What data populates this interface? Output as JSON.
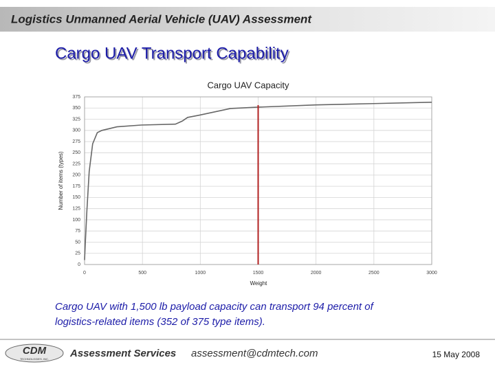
{
  "header": {
    "title": "Logistics Unmanned Aerial Vehicle (UAV) Assessment"
  },
  "slide": {
    "title": "Cargo UAV Transport Capability",
    "caption": [
      "Cargo UAV with 1,500 lb payload capacity can transport 94 percent of",
      "logistics-related items  (352 of 375 type items)."
    ]
  },
  "chart_data": {
    "type": "line",
    "title": "Cargo UAV Capacity",
    "x_label": "Weight",
    "y_label": "Number of items (types)",
    "x": [
      0,
      5,
      20,
      40,
      70,
      110,
      150,
      280,
      490,
      785,
      845,
      890,
      990,
      1260,
      1500,
      2000,
      2500,
      3000
    ],
    "series": [
      {
        "name": "Items",
        "color": "#666666",
        "values": [
          10,
          40,
          120,
          208,
          270,
          295,
          300,
          308,
          312,
          314,
          321,
          329,
          334,
          349,
          352,
          357,
          360,
          363
        ]
      }
    ],
    "ref_line": {
      "x": 1500,
      "color": "#b22222"
    },
    "xlim": [
      0,
      3000
    ],
    "xticks": [
      0,
      500,
      1000,
      1500,
      2000,
      2500,
      3000
    ],
    "ylim": [
      0,
      375
    ],
    "yticks": [
      0,
      25,
      50,
      75,
      100,
      125,
      150,
      175,
      200,
      225,
      250,
      275,
      300,
      325,
      350,
      375
    ],
    "grid": true
  },
  "footer": {
    "logo": "CDM",
    "logo_sub": "TECHNOLOGIES, INC.",
    "service": "Assessment Services",
    "email": "assessment@cdmtech.com",
    "date": "15 May 2008"
  }
}
